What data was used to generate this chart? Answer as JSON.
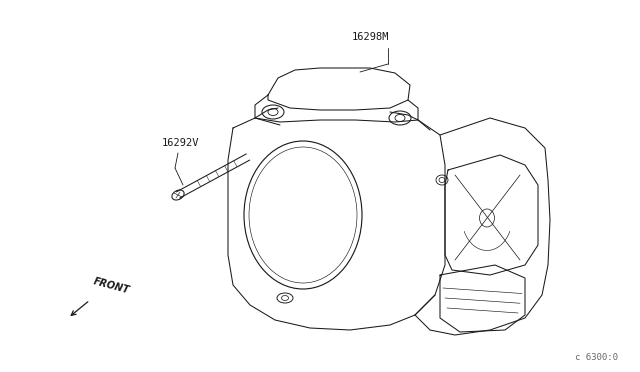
{
  "bg_color": "#ffffff",
  "line_color": "#1a1a1a",
  "label_16298M": "16298M",
  "label_16292V": "16292V",
  "label_front": "FRONT",
  "label_partnum": "c 6300:0",
  "lw": 0.75
}
